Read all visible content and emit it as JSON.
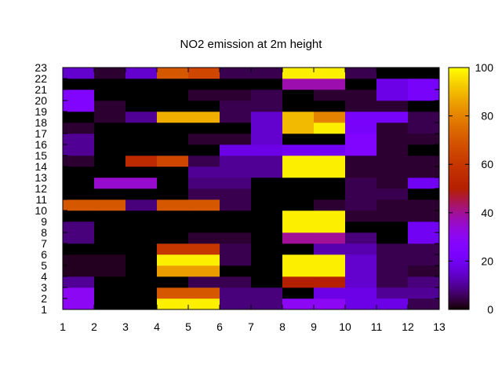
{
  "chart_data": {
    "type": "heatmap",
    "title": "NO2 emission at 2m height",
    "xlabel": "",
    "ylabel": "",
    "x_ticks": [
      1,
      2,
      3,
      4,
      5,
      6,
      7,
      8,
      9,
      10,
      11,
      12,
      13
    ],
    "y_ticks": [
      1,
      2,
      3,
      4,
      5,
      6,
      7,
      8,
      9,
      10,
      11,
      12,
      13,
      14,
      15,
      16,
      17,
      18,
      19,
      20,
      21,
      22,
      23
    ],
    "xlim": [
      1,
      13
    ],
    "ylim": [
      1,
      23
    ],
    "colorbar": {
      "ticks": [
        0,
        20,
        40,
        60,
        80,
        100
      ],
      "range": [
        0,
        100
      ],
      "palette": "gnuplot-pm3d-rgbformulae-7-5-15"
    },
    "grid": false,
    "legend": "none",
    "x_cells": [
      1,
      2,
      3,
      4,
      5,
      6,
      7,
      8,
      9,
      10,
      11,
      12
    ],
    "y_cells": [
      1,
      2,
      3,
      4,
      5,
      6,
      7,
      8,
      9,
      10,
      11,
      12,
      13,
      14,
      15,
      16,
      17,
      18,
      19,
      20,
      21,
      22
    ],
    "values": [
      [
        30,
        0,
        0,
        98,
        98,
        8,
        8,
        30,
        30,
        18,
        18,
        5
      ],
      [
        30,
        0,
        0,
        70,
        70,
        8,
        8,
        0,
        18,
        18,
        10,
        10
      ],
      [
        10,
        0,
        0,
        0,
        5,
        5,
        0,
        50,
        50,
        15,
        5,
        8
      ],
      [
        2,
        2,
        0,
        85,
        85,
        0,
        0,
        98,
        98,
        15,
        5,
        3
      ],
      [
        2,
        2,
        0,
        98,
        98,
        5,
        0,
        98,
        98,
        15,
        5,
        5
      ],
      [
        0,
        0,
        0,
        60,
        60,
        5,
        0,
        0,
        12,
        12,
        5,
        5
      ],
      [
        8,
        0,
        0,
        0,
        3,
        3,
        0,
        40,
        40,
        8,
        0,
        20
      ],
      [
        8,
        0,
        0,
        0,
        0,
        0,
        0,
        98,
        98,
        0,
        0,
        20
      ],
      [
        0,
        0,
        0,
        0,
        0,
        0,
        0,
        98,
        98,
        3,
        3,
        3
      ],
      [
        70,
        70,
        8,
        70,
        70,
        5,
        0,
        0,
        3,
        5,
        3,
        3
      ],
      [
        0,
        0,
        0,
        0,
        5,
        5,
        0,
        0,
        0,
        5,
        5,
        0
      ],
      [
        0,
        35,
        35,
        0,
        8,
        8,
        0,
        0,
        0,
        5,
        3,
        20
      ],
      [
        0,
        0,
        0,
        0,
        10,
        10,
        10,
        98,
        98,
        3,
        3,
        3
      ],
      [
        3,
        0,
        55,
        65,
        5,
        10,
        10,
        98,
        98,
        3,
        3,
        3
      ],
      [
        10,
        0,
        0,
        0,
        0,
        18,
        18,
        20,
        20,
        25,
        3,
        0
      ],
      [
        10,
        0,
        0,
        0,
        3,
        3,
        15,
        0,
        0,
        25,
        3,
        3
      ],
      [
        3,
        0,
        0,
        0,
        0,
        0,
        15,
        90,
        98,
        22,
        3,
        5
      ],
      [
        0,
        3,
        10,
        88,
        88,
        5,
        15,
        90,
        80,
        22,
        22,
        5
      ],
      [
        25,
        3,
        0,
        0,
        0,
        5,
        5,
        0,
        0,
        3,
        3,
        0
      ],
      [
        25,
        0,
        0,
        0,
        3,
        3,
        5,
        0,
        3,
        3,
        18,
        22
      ],
      [
        0,
        0,
        0,
        0,
        0,
        0,
        0,
        38,
        38,
        0,
        18,
        22
      ],
      [
        15,
        3,
        15,
        70,
        65,
        5,
        5,
        98,
        98,
        5,
        0,
        0
      ]
    ]
  }
}
